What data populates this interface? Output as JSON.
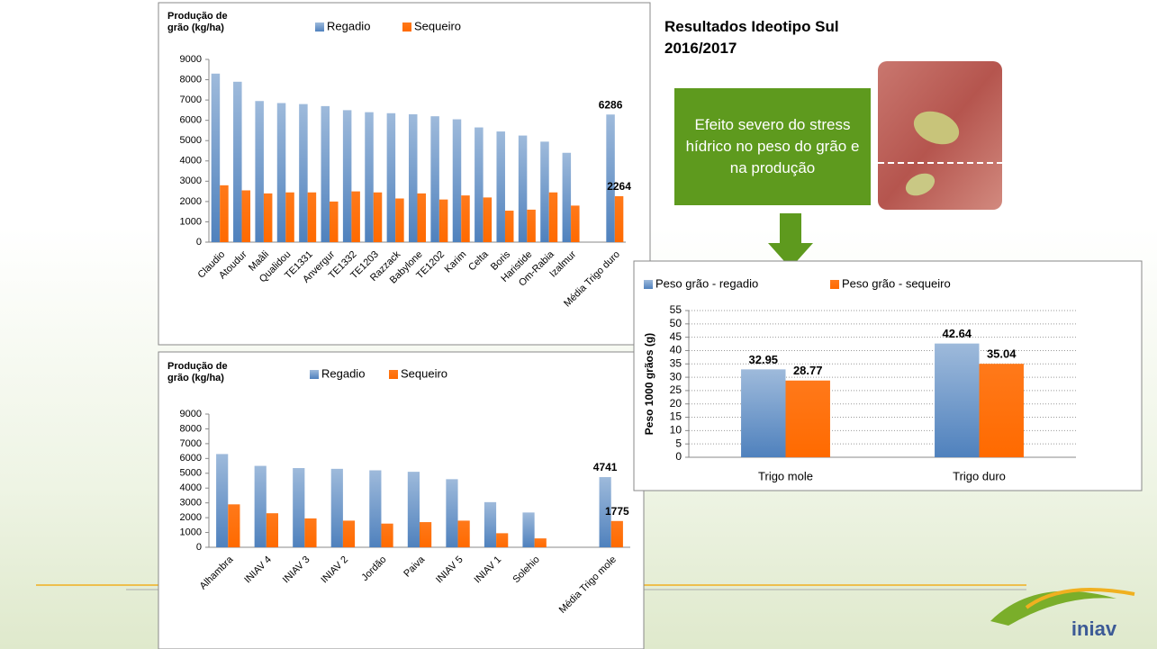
{
  "slide": {
    "title": "Resultados Ideotipo Sul 2016/2017",
    "callout": "Efeito severo do stress hídrico no peso do grão e na produção",
    "logo": "iniav"
  },
  "chart_data": [
    {
      "type": "bar",
      "y_label": "Produção de grão (kg/ha)",
      "categories": [
        "Claudio",
        "Atoudur",
        "Maâli",
        "Qualidou",
        "TE1331",
        "Anvergur",
        "TE1332",
        "TE1203",
        "Razzack",
        "Babylone",
        "TE1202",
        "Karim",
        "Celta",
        "Boris",
        "Haristide",
        "Om-Rabia",
        "Izalmur",
        null,
        "Média Trigo duro"
      ],
      "series": [
        {
          "name": "Regadio",
          "color": "#4f81bd",
          "values": [
            8300,
            7900,
            6950,
            6850,
            6800,
            6700,
            6500,
            6400,
            6350,
            6300,
            6200,
            6050,
            5650,
            5450,
            5250,
            4950,
            4400,
            null,
            6286
          ]
        },
        {
          "name": "Sequeiro",
          "color": "#ff6a00",
          "values": [
            2800,
            2550,
            2400,
            2450,
            2450,
            2000,
            2500,
            2450,
            2150,
            2400,
            2100,
            2300,
            2200,
            1550,
            1600,
            2450,
            1800,
            null,
            2264
          ]
        }
      ],
      "ylim": [
        0,
        9000
      ],
      "yticks": [
        0,
        1000,
        2000,
        3000,
        4000,
        5000,
        6000,
        7000,
        8000,
        9000
      ],
      "grid": false,
      "data_labels": "last"
    },
    {
      "type": "bar",
      "y_label": "Produção de grão (kg/ha)",
      "categories": [
        "Alhambra",
        "INIAV 4",
        "INIAV 3",
        "INIAV 2",
        "Jordão",
        "Paiva",
        "INIAV 5",
        "INIAV 1",
        "Solehio",
        null,
        "Média Trigo mole"
      ],
      "series": [
        {
          "name": "Regadio",
          "color": "#4f81bd",
          "values": [
            6300,
            5500,
            5350,
            5300,
            5200,
            5100,
            4600,
            3050,
            2350,
            null,
            4741
          ]
        },
        {
          "name": "Sequeiro",
          "color": "#ff6a00",
          "values": [
            2900,
            2300,
            1950,
            1800,
            1600,
            1700,
            1800,
            950,
            600,
            null,
            1775
          ]
        }
      ],
      "ylim": [
        0,
        9000
      ],
      "yticks": [
        0,
        1000,
        2000,
        3000,
        4000,
        5000,
        6000,
        7000,
        8000,
        9000
      ],
      "grid": false,
      "data_labels": "last"
    },
    {
      "type": "bar",
      "y_label": "Peso 1000 grãos (g)",
      "categories": [
        "Trigo mole",
        "Trigo duro"
      ],
      "series": [
        {
          "name": "Peso grão - regadio",
          "color": "#4f81bd",
          "values": [
            32.95,
            42.64
          ]
        },
        {
          "name": "Peso grão - sequeiro",
          "color": "#ff6a00",
          "values": [
            28.77,
            35.04
          ]
        }
      ],
      "ylim": [
        0,
        55
      ],
      "yticks": [
        0,
        5,
        10,
        15,
        20,
        25,
        30,
        35,
        40,
        45,
        50,
        55
      ],
      "grid": true,
      "data_labels": "all"
    }
  ]
}
